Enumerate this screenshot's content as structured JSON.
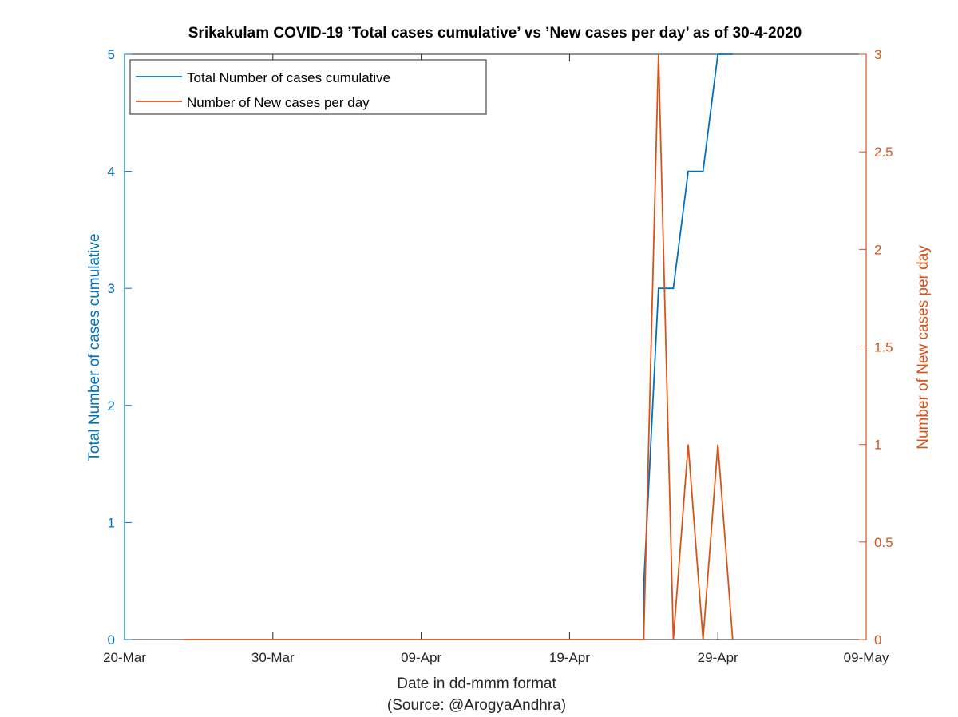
{
  "chart_data": {
    "type": "line",
    "title": "Srikakulam COVID-19 ’Total cases cumulative’ vs ’New cases per day’ as of 30-4-2020",
    "xlabel": "Date in dd-mmm format",
    "xlabel_source": "(Source: @ArogyaAndhra)",
    "ylabel_left": "Total Number of cases cumulative",
    "ylabel_right": "Number of New cases per day",
    "xlim": [
      0,
      50
    ],
    "ylim_left": [
      0,
      5
    ],
    "ylim_right": [
      0,
      3
    ],
    "x_ticks": [
      {
        "day": 0,
        "label": "20-Mar"
      },
      {
        "day": 10,
        "label": "30-Mar"
      },
      {
        "day": 20,
        "label": "09-Apr"
      },
      {
        "day": 30,
        "label": "19-Apr"
      },
      {
        "day": 40,
        "label": "29-Apr"
      },
      {
        "day": 50,
        "label": "09-May"
      }
    ],
    "y_left_ticks": [
      "0",
      "1",
      "2",
      "3",
      "4",
      "5"
    ],
    "y_right_ticks": [
      "0",
      "0.5",
      "1",
      "1.5",
      "2",
      "2.5",
      "3"
    ],
    "series": [
      {
        "name": "Total Number of cases cumulative",
        "axis": "left",
        "color": "#0072BD",
        "x": [
          35,
          35.02,
          36,
          37,
          38,
          39,
          40,
          41
        ],
        "y": [
          0,
          0.5,
          3,
          3,
          4,
          4,
          5,
          5
        ]
      },
      {
        "name": "Number of New cases per day",
        "axis": "right",
        "color": "#D95319",
        "x": [
          4,
          35,
          36,
          37,
          38,
          39,
          40,
          41
        ],
        "y": [
          0,
          0,
          3,
          0,
          1,
          0,
          1,
          0
        ]
      }
    ],
    "legend": {
      "position": "top-left",
      "entries": [
        "Total Number of cases cumulative",
        "Number of New cases per day"
      ]
    },
    "colors": {
      "left_axis": "#0072BD",
      "right_axis": "#D95319",
      "box": "#262626"
    }
  }
}
